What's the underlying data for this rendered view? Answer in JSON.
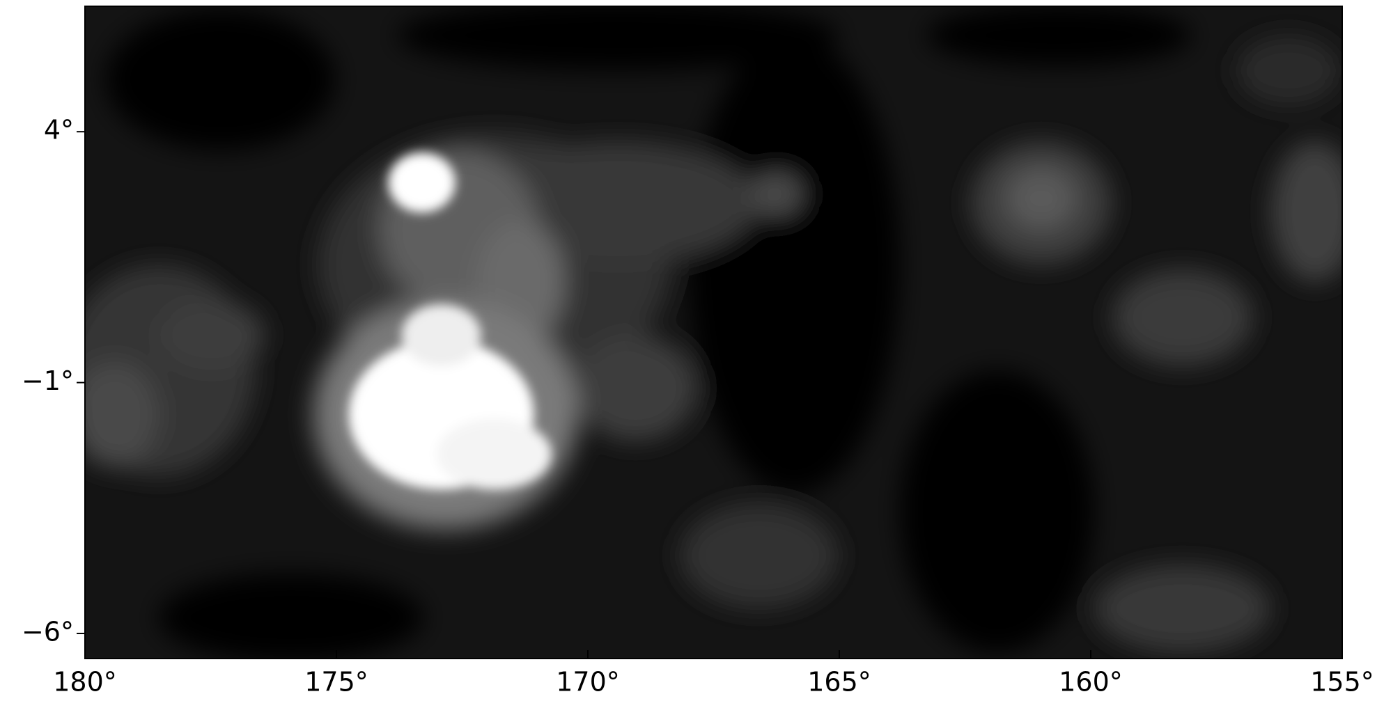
{
  "chart_data": {
    "type": "image",
    "colormap": "gray",
    "xlim": [
      180,
      155
    ],
    "xticks": [
      {
        "value": 180,
        "label": "180°"
      },
      {
        "value": 175,
        "label": "175°"
      },
      {
        "value": 170,
        "label": "170°"
      },
      {
        "value": 165,
        "label": "165°"
      },
      {
        "value": 160,
        "label": "160°"
      },
      {
        "value": 155,
        "label": "155°"
      }
    ],
    "ylim": [
      -6.5,
      6.5
    ],
    "yticks": [
      {
        "value": 4,
        "label": "4°"
      },
      {
        "value": -1,
        "label": "−1°"
      },
      {
        "value": -6,
        "label": "−6°"
      }
    ]
  }
}
